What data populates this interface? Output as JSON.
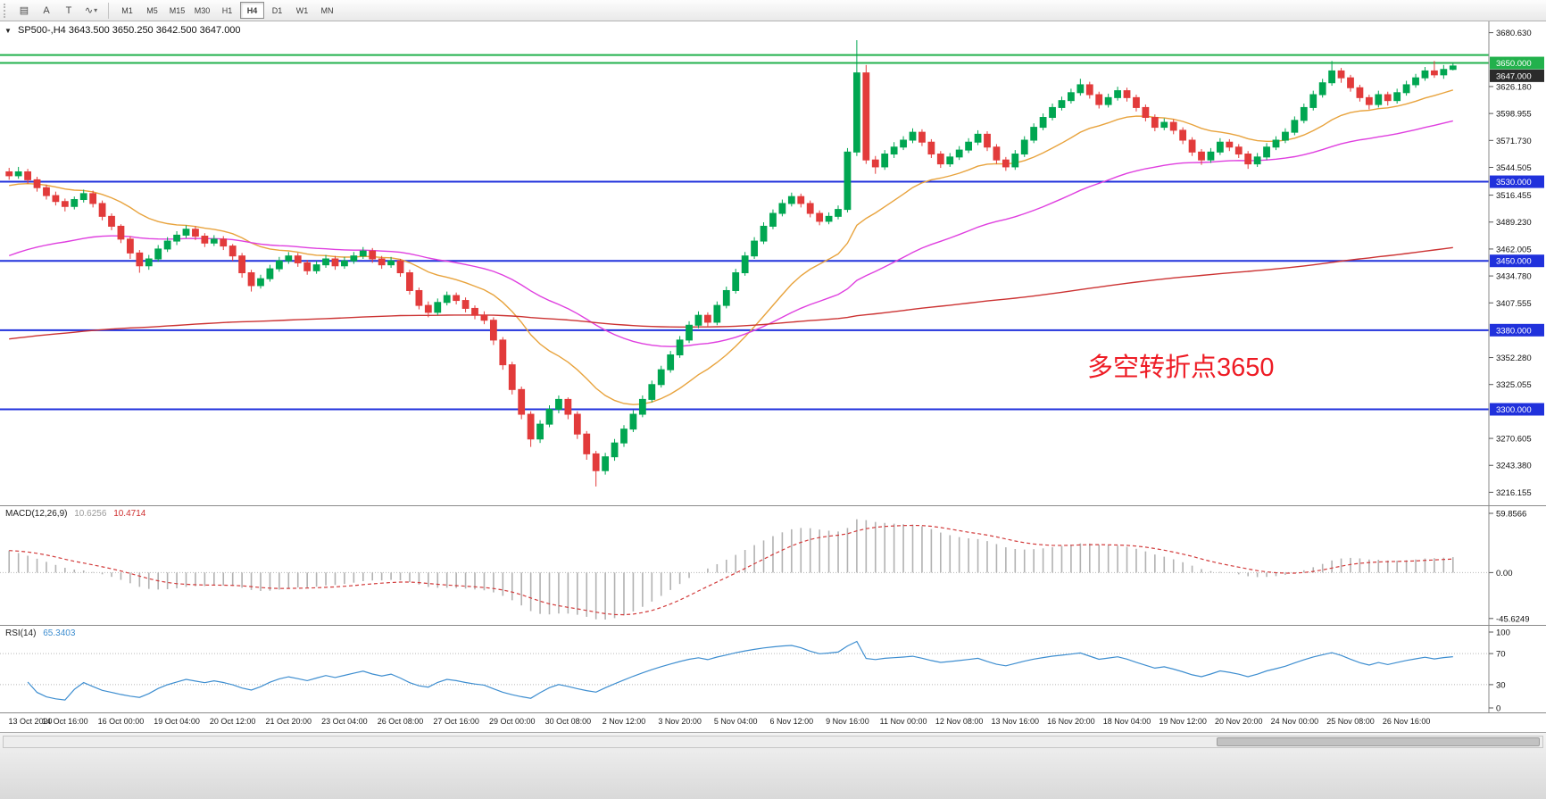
{
  "toolbar": {
    "tools": [
      {
        "name": "chart-list",
        "glyph": "▤"
      },
      {
        "name": "text-tool",
        "glyph": "A"
      },
      {
        "name": "type-tool",
        "glyph": "T"
      },
      {
        "name": "line-studies",
        "glyph": "∿",
        "caret": "▾"
      }
    ],
    "timeframes": [
      {
        "label": "M1",
        "active": false
      },
      {
        "label": "M5",
        "active": false
      },
      {
        "label": "M15",
        "active": false
      },
      {
        "label": "M30",
        "active": false
      },
      {
        "label": "H1",
        "active": false
      },
      {
        "label": "H4",
        "active": true
      },
      {
        "label": "D1",
        "active": false
      },
      {
        "label": "W1",
        "active": false
      },
      {
        "label": "MN",
        "active": false
      }
    ]
  },
  "chart": {
    "collapse_icon": "▼",
    "title": "SP500-,H4",
    "ohlc": "3643.500 3650.250 3642.500 3647.000",
    "annotation": {
      "text": "多空转折点3650",
      "color": "#ee1c25"
    },
    "colors": {
      "up": "#00a651",
      "down": "#e23b3b"
    },
    "price_axis": {
      "ticks": [
        "3680.630",
        "3626.180",
        "3598.955",
        "3571.730",
        "3544.505",
        "3516.455",
        "3489.230",
        "3462.005",
        "3434.780",
        "3407.555",
        "3352.280",
        "3325.055",
        "3270.605",
        "3243.380",
        "3216.155"
      ]
    },
    "hlines": [
      {
        "value": 3658,
        "color": "#22b14c",
        "width": 2
      },
      {
        "value": 3650,
        "color": "#22b14c",
        "width": 2,
        "label": "3650.000"
      },
      {
        "value": 3530,
        "color": "#2031dc",
        "width": 2,
        "label": "3530.000"
      },
      {
        "value": 3450,
        "color": "#2031dc",
        "width": 2,
        "label": "3450.000"
      },
      {
        "value": 3380,
        "color": "#2031dc",
        "width": 2,
        "label": "3380.000"
      },
      {
        "value": 3300,
        "color": "#2031dc",
        "width": 2,
        "label": "3300.000"
      }
    ],
    "current_price": {
      "value": 3647,
      "label": "3647.000",
      "bg": "#2b2b2b"
    }
  },
  "chart_data": {
    "type": "candlestick",
    "symbol": "SP500-",
    "timeframe": "H4",
    "title": "SP500-,H4 3643.500 3650.250 3642.500 3647.000",
    "y_range": [
      3203,
      3692
    ],
    "x_labels": [
      "13 Oct 2020",
      "14 Oct 16:00",
      "16 Oct 00:00",
      "19 Oct 04:00",
      "20 Oct 12:00",
      "21 Oct 20:00",
      "23 Oct 04:00",
      "26 Oct 08:00",
      "27 Oct 16:00",
      "29 Oct 00:00",
      "30 Oct 08:00",
      "2 Nov 12:00",
      "3 Nov 20:00",
      "5 Nov 04:00",
      "6 Nov 12:00",
      "9 Nov 16:00",
      "11 Nov 00:00",
      "12 Nov 08:00",
      "13 Nov 16:00",
      "16 Nov 20:00",
      "18 Nov 04:00",
      "19 Nov 12:00",
      "20 Nov 20:00",
      "24 Nov 00:00",
      "25 Nov 08:00",
      "26 Nov 16:00"
    ],
    "bars_per_label": 6,
    "candles": [
      [
        3540,
        3544,
        3532,
        3536
      ],
      [
        3536,
        3545,
        3533,
        3540
      ],
      [
        3540,
        3543,
        3528,
        3532
      ],
      [
        3532,
        3535,
        3520,
        3524
      ],
      [
        3524,
        3527,
        3512,
        3516
      ],
      [
        3516,
        3520,
        3506,
        3510
      ],
      [
        3510,
        3513,
        3500,
        3505
      ],
      [
        3505,
        3515,
        3502,
        3512
      ],
      [
        3512,
        3522,
        3509,
        3518
      ],
      [
        3518,
        3521,
        3504,
        3508
      ],
      [
        3508,
        3511,
        3491,
        3495
      ],
      [
        3495,
        3498,
        3481,
        3485
      ],
      [
        3485,
        3487,
        3468,
        3472
      ],
      [
        3472,
        3475,
        3452,
        3458
      ],
      [
        3458,
        3461,
        3438,
        3445
      ],
      [
        3445,
        3456,
        3441,
        3452
      ],
      [
        3452,
        3466,
        3449,
        3462
      ],
      [
        3462,
        3474,
        3459,
        3470
      ],
      [
        3470,
        3480,
        3466,
        3476
      ],
      [
        3476,
        3486,
        3473,
        3482
      ],
      [
        3482,
        3485,
        3471,
        3475
      ],
      [
        3475,
        3478,
        3464,
        3468
      ],
      [
        3468,
        3476,
        3465,
        3472
      ],
      [
        3472,
        3475,
        3461,
        3465
      ],
      [
        3465,
        3467,
        3450,
        3455
      ],
      [
        3455,
        3458,
        3433,
        3438
      ],
      [
        3438,
        3441,
        3419,
        3425
      ],
      [
        3425,
        3436,
        3422,
        3432
      ],
      [
        3432,
        3446,
        3429,
        3442
      ],
      [
        3442,
        3454,
        3439,
        3450
      ],
      [
        3450,
        3459,
        3447,
        3455
      ],
      [
        3455,
        3458,
        3444,
        3448
      ],
      [
        3448,
        3451,
        3436,
        3440
      ],
      [
        3440,
        3450,
        3437,
        3446
      ],
      [
        3446,
        3456,
        3443,
        3452
      ],
      [
        3452,
        3455,
        3441,
        3445
      ],
      [
        3445,
        3454,
        3442,
        3450
      ],
      [
        3450,
        3459,
        3447,
        3455
      ],
      [
        3455,
        3464,
        3452,
        3460
      ],
      [
        3460,
        3463,
        3448,
        3452
      ],
      [
        3452,
        3455,
        3442,
        3446
      ],
      [
        3446,
        3454,
        3443,
        3450
      ],
      [
        3450,
        3452,
        3434,
        3438
      ],
      [
        3438,
        3441,
        3416,
        3420
      ],
      [
        3420,
        3423,
        3401,
        3405
      ],
      [
        3405,
        3409,
        3393,
        3398
      ],
      [
        3398,
        3412,
        3395,
        3408
      ],
      [
        3408,
        3419,
        3405,
        3415
      ],
      [
        3415,
        3418,
        3406,
        3410
      ],
      [
        3410,
        3413,
        3398,
        3402
      ],
      [
        3402,
        3405,
        3391,
        3395
      ],
      [
        3395,
        3399,
        3386,
        3390
      ],
      [
        3390,
        3393,
        3365,
        3370
      ],
      [
        3370,
        3373,
        3340,
        3345
      ],
      [
        3345,
        3348,
        3315,
        3320
      ],
      [
        3320,
        3323,
        3290,
        3295
      ],
      [
        3295,
        3298,
        3262,
        3270
      ],
      [
        3270,
        3289,
        3266,
        3285
      ],
      [
        3285,
        3304,
        3282,
        3300
      ],
      [
        3300,
        3314,
        3296,
        3310
      ],
      [
        3310,
        3312,
        3290,
        3295
      ],
      [
        3295,
        3298,
        3270,
        3275
      ],
      [
        3275,
        3278,
        3249,
        3255
      ],
      [
        3255,
        3258,
        3222,
        3238
      ],
      [
        3238,
        3256,
        3234,
        3252
      ],
      [
        3252,
        3270,
        3248,
        3266
      ],
      [
        3266,
        3284,
        3262,
        3280
      ],
      [
        3280,
        3299,
        3277,
        3295
      ],
      [
        3295,
        3314,
        3292,
        3310
      ],
      [
        3310,
        3329,
        3307,
        3325
      ],
      [
        3325,
        3344,
        3322,
        3340
      ],
      [
        3340,
        3359,
        3337,
        3355
      ],
      [
        3355,
        3374,
        3352,
        3370
      ],
      [
        3370,
        3389,
        3367,
        3385
      ],
      [
        3385,
        3399,
        3382,
        3395
      ],
      [
        3395,
        3398,
        3383,
        3388
      ],
      [
        3388,
        3409,
        3385,
        3405
      ],
      [
        3405,
        3424,
        3402,
        3420
      ],
      [
        3420,
        3442,
        3417,
        3438
      ],
      [
        3438,
        3459,
        3435,
        3455
      ],
      [
        3455,
        3474,
        3452,
        3470
      ],
      [
        3470,
        3489,
        3467,
        3485
      ],
      [
        3485,
        3502,
        3482,
        3498
      ],
      [
        3498,
        3512,
        3495,
        3508
      ],
      [
        3508,
        3519,
        3505,
        3515
      ],
      [
        3515,
        3518,
        3504,
        3508
      ],
      [
        3508,
        3511,
        3494,
        3498
      ],
      [
        3498,
        3501,
        3486,
        3490
      ],
      [
        3490,
        3499,
        3487,
        3495
      ],
      [
        3495,
        3506,
        3492,
        3502
      ],
      [
        3502,
        3564,
        3499,
        3560
      ],
      [
        3560,
        3673,
        3556,
        3640
      ],
      [
        3640,
        3648,
        3548,
        3552
      ],
      [
        3552,
        3556,
        3538,
        3545
      ],
      [
        3545,
        3562,
        3542,
        3558
      ],
      [
        3558,
        3570,
        3554,
        3565
      ],
      [
        3565,
        3576,
        3562,
        3572
      ],
      [
        3572,
        3584,
        3569,
        3580
      ],
      [
        3580,
        3583,
        3566,
        3570
      ],
      [
        3570,
        3573,
        3554,
        3558
      ],
      [
        3558,
        3561,
        3544,
        3548
      ],
      [
        3548,
        3559,
        3545,
        3555
      ],
      [
        3555,
        3566,
        3552,
        3562
      ],
      [
        3562,
        3574,
        3559,
        3570
      ],
      [
        3570,
        3582,
        3567,
        3578
      ],
      [
        3578,
        3581,
        3561,
        3565
      ],
      [
        3565,
        3568,
        3548,
        3552
      ],
      [
        3552,
        3555,
        3541,
        3545
      ],
      [
        3545,
        3562,
        3542,
        3558
      ],
      [
        3558,
        3576,
        3555,
        3572
      ],
      [
        3572,
        3589,
        3569,
        3585
      ],
      [
        3585,
        3599,
        3582,
        3595
      ],
      [
        3595,
        3609,
        3592,
        3605
      ],
      [
        3605,
        3616,
        3602,
        3612
      ],
      [
        3612,
        3624,
        3609,
        3620
      ],
      [
        3620,
        3634,
        3617,
        3628
      ],
      [
        3628,
        3631,
        3614,
        3618
      ],
      [
        3618,
        3621,
        3604,
        3608
      ],
      [
        3608,
        3619,
        3605,
        3615
      ],
      [
        3615,
        3626,
        3612,
        3622
      ],
      [
        3622,
        3625,
        3611,
        3615
      ],
      [
        3615,
        3618,
        3601,
        3605
      ],
      [
        3605,
        3608,
        3591,
        3595
      ],
      [
        3595,
        3598,
        3581,
        3585
      ],
      [
        3585,
        3594,
        3582,
        3590
      ],
      [
        3590,
        3593,
        3578,
        3582
      ],
      [
        3582,
        3585,
        3568,
        3572
      ],
      [
        3572,
        3575,
        3556,
        3560
      ],
      [
        3560,
        3563,
        3547,
        3552
      ],
      [
        3552,
        3564,
        3549,
        3560
      ],
      [
        3560,
        3574,
        3557,
        3570
      ],
      [
        3570,
        3573,
        3561,
        3565
      ],
      [
        3565,
        3568,
        3554,
        3558
      ],
      [
        3558,
        3561,
        3543,
        3548
      ],
      [
        3548,
        3559,
        3545,
        3555
      ],
      [
        3555,
        3569,
        3552,
        3565
      ],
      [
        3565,
        3576,
        3562,
        3572
      ],
      [
        3572,
        3584,
        3569,
        3580
      ],
      [
        3580,
        3596,
        3577,
        3592
      ],
      [
        3592,
        3609,
        3589,
        3605
      ],
      [
        3605,
        3622,
        3602,
        3618
      ],
      [
        3618,
        3634,
        3615,
        3630
      ],
      [
        3630,
        3652,
        3627,
        3642
      ],
      [
        3642,
        3645,
        3630,
        3635
      ],
      [
        3635,
        3638,
        3621,
        3625
      ],
      [
        3625,
        3628,
        3611,
        3615
      ],
      [
        3615,
        3618,
        3603,
        3608
      ],
      [
        3608,
        3622,
        3605,
        3618
      ],
      [
        3618,
        3621,
        3607,
        3612
      ],
      [
        3612,
        3624,
        3609,
        3620
      ],
      [
        3620,
        3632,
        3617,
        3628
      ],
      [
        3628,
        3639,
        3625,
        3635
      ],
      [
        3635,
        3646,
        3632,
        3642
      ],
      [
        3642,
        3652,
        3635,
        3638
      ],
      [
        3638,
        3648,
        3634,
        3643.5
      ],
      [
        3643.5,
        3650.25,
        3642.5,
        3647
      ]
    ],
    "moving_averages": [
      {
        "name": "ma-fast",
        "period": 18,
        "seed": 3525,
        "color": "#e8a33d"
      },
      {
        "name": "ma-mid",
        "period": 50,
        "seed": 3452,
        "color": "#df3fdf"
      },
      {
        "name": "ma-slow",
        "period": 300,
        "seed": 3370,
        "color": "#cc3333"
      }
    ],
    "indicators": [
      {
        "type": "macd",
        "name": "MACD(12,26,9)",
        "values": [
          "10.6256",
          "10.4714"
        ],
        "axis": [
          "59.8566",
          "0.00",
          "-45.6249"
        ],
        "range": [
          -52,
          66
        ],
        "seed_fast": 3552,
        "seed_slow": 3527,
        "histogram_color": "#b2b2b2",
        "signal_color": "#d23b3b"
      },
      {
        "type": "rsi",
        "name": "RSI(14)",
        "value": "65.3403",
        "axis": [
          "100",
          "70",
          "30",
          "0"
        ],
        "levels": [
          70,
          30
        ],
        "color": "#3e8ed0"
      }
    ]
  }
}
